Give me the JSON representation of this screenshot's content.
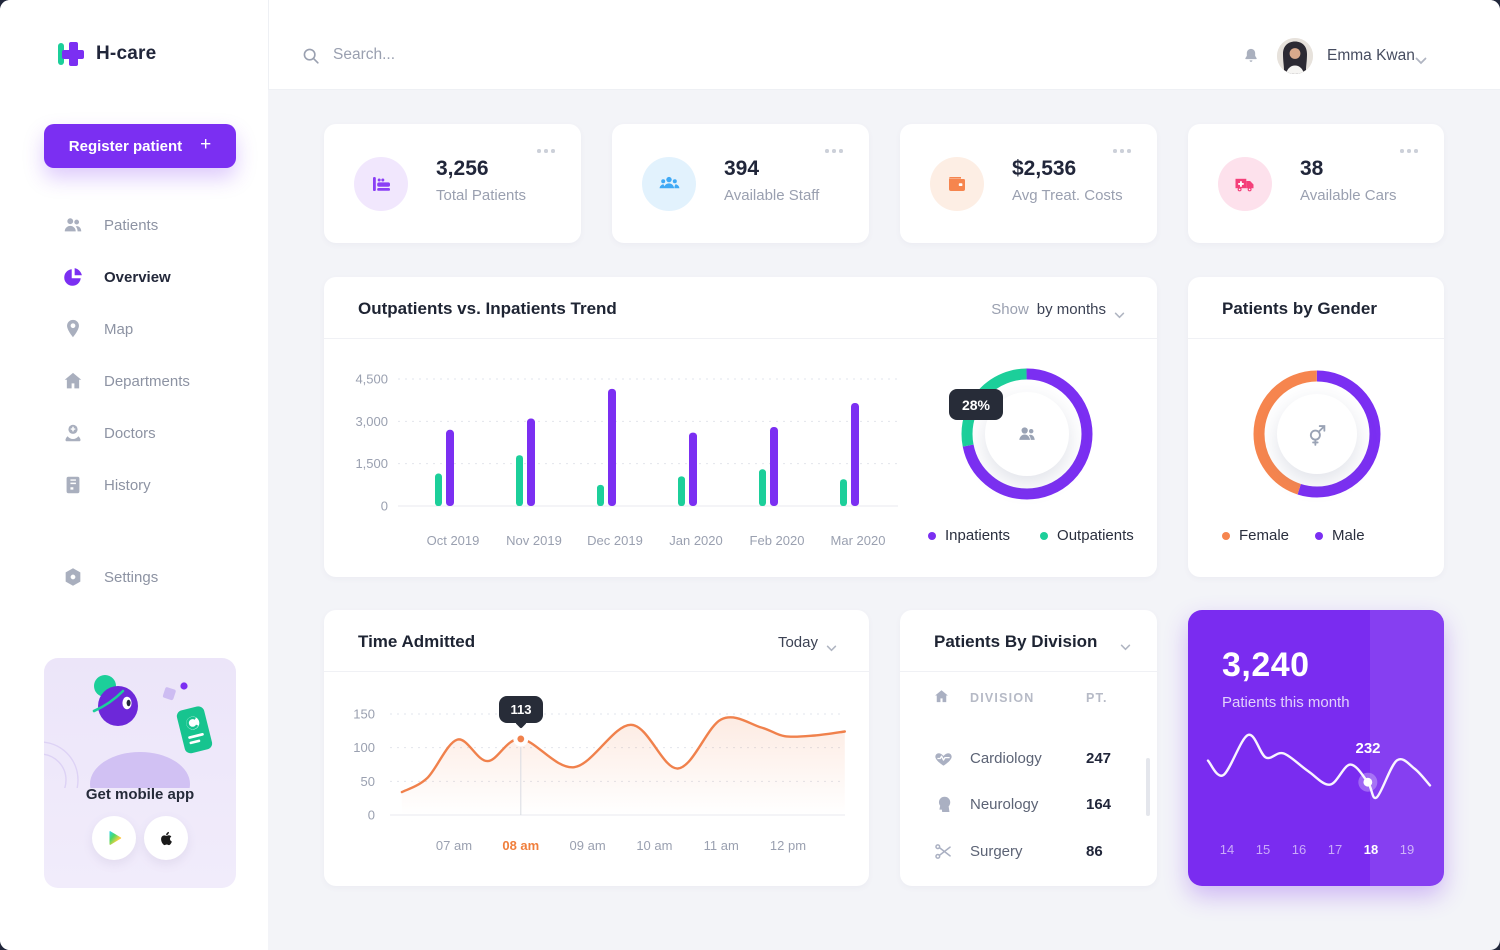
{
  "topbar": {
    "search_placeholder": "Search...",
    "user_name": "Emma Kwan"
  },
  "sidebar": {
    "brand": "H-care",
    "register_button": {
      "label": "Register patient",
      "plus": "+"
    },
    "items": [
      {
        "label": "Patients",
        "icon": "patients-icon",
        "active": false
      },
      {
        "label": "Overview",
        "icon": "overview-pie-icon",
        "active": true
      },
      {
        "label": "Map",
        "icon": "map-pin-icon",
        "active": false
      },
      {
        "label": "Departments",
        "icon": "home-icon",
        "active": false
      },
      {
        "label": "Doctors",
        "icon": "doctor-icon",
        "active": false
      },
      {
        "label": "History",
        "icon": "history-icon",
        "active": false
      },
      {
        "label": "Settings",
        "icon": "settings-icon",
        "active": false
      }
    ],
    "mobile_card": {
      "title": "Get mobile app",
      "stores": [
        "google-play",
        "app-store"
      ]
    }
  },
  "stats": [
    {
      "value": "3,256",
      "label": "Total Patients",
      "icon": "bed-icon",
      "icon_color": "#8a3ff5",
      "icon_bg": "#f1e7fd"
    },
    {
      "value": "394",
      "label": "Available Staff",
      "icon": "staff-icon",
      "icon_color": "#3fa9f5",
      "icon_bg": "#e2f2fd"
    },
    {
      "value": "$2,536",
      "label": "Avg Treat. Costs",
      "icon": "wallet-icon",
      "icon_color": "#f6854e",
      "icon_bg": "#fdeee4"
    },
    {
      "value": "38",
      "label": "Available Cars",
      "icon": "ambulance-icon",
      "icon_color": "#f4407a",
      "icon_bg": "#fde1ec"
    }
  ],
  "trend": {
    "title": "Outpatients vs. Inpatients Trend",
    "dropdown_prefix": "Show",
    "dropdown_value": "by months"
  },
  "gender": {
    "title": "Patients by Gender"
  },
  "time": {
    "title": "Time Admitted",
    "dropdown_value": "Today",
    "tooltip": "113"
  },
  "division": {
    "title": "Patients By Division",
    "columns": [
      "DIVISION",
      "PT."
    ],
    "rows": [
      {
        "icon": "cardiology-heart-icon",
        "name": "Cardiology",
        "value": "247"
      },
      {
        "icon": "neurology-head-icon",
        "name": "Neurology",
        "value": "164"
      },
      {
        "icon": "surgery-scissors-icon",
        "name": "Surgery",
        "value": "86"
      }
    ]
  },
  "month_card": {
    "value": "3,240",
    "label": "Patients this month",
    "point_label": "232",
    "days": [
      "14",
      "15",
      "16",
      "17",
      "18",
      "19"
    ],
    "active_day": "18"
  },
  "chart_data": [
    {
      "id": "trend-bars",
      "type": "bar",
      "title": "Outpatients vs. Inpatients Trend",
      "categories": [
        "Oct 2019",
        "Nov 2019",
        "Dec 2019",
        "Jan 2020",
        "Feb 2020",
        "Mar 2020"
      ],
      "series": [
        {
          "name": "Outpatients",
          "color": "#1ccf9a",
          "values": [
            1150,
            1800,
            750,
            1050,
            1300,
            950
          ]
        },
        {
          "name": "Inpatients",
          "color": "#7b2ff2",
          "values": [
            2700,
            3100,
            4150,
            2600,
            2800,
            3650
          ]
        }
      ],
      "ylim": [
        0,
        4500
      ],
      "yticks": [
        0,
        1500,
        3000,
        4500
      ],
      "ytick_labels": [
        "0",
        "1,500",
        "3,000",
        "4,500"
      ],
      "grid": "horizontal-dashed",
      "legend_position": "bottom-right"
    },
    {
      "id": "trend-donut",
      "type": "pie",
      "badge": "28%",
      "center_icon": "patients-icon",
      "slices": [
        {
          "name": "Inpatients",
          "color": "#7b2ff2",
          "pct": 72
        },
        {
          "name": "Outpatients",
          "color": "#1ccf9a",
          "pct": 28
        }
      ]
    },
    {
      "id": "gender-donut",
      "type": "pie",
      "title": "Patients by Gender",
      "center_icon": "gender-icon",
      "slices": [
        {
          "name": "Male",
          "color": "#7b2ff2",
          "pct": 55
        },
        {
          "name": "Female",
          "color": "#f6854e",
          "pct": 45
        }
      ],
      "legend_order": [
        "Female",
        "Male"
      ]
    },
    {
      "id": "time-line",
      "type": "line",
      "title": "Time Admitted",
      "color": "#f0814c",
      "x_labels": [
        "07 am",
        "08 am",
        "09 am",
        "10 am",
        "11 am",
        "12 pm"
      ],
      "active_x_label": "08 am",
      "yticks": [
        0,
        50,
        100,
        150
      ],
      "ylim": [
        0,
        160
      ],
      "tooltip": {
        "value": 113,
        "x": "08 am"
      },
      "points": [
        {
          "h": 6.22,
          "v": 34
        },
        {
          "h": 6.6,
          "v": 55
        },
        {
          "h": 7.05,
          "v": 112
        },
        {
          "h": 7.5,
          "v": 80
        },
        {
          "h": 8.0,
          "v": 113
        },
        {
          "h": 8.8,
          "v": 71
        },
        {
          "h": 9.65,
          "v": 134
        },
        {
          "h": 10.35,
          "v": 69
        },
        {
          "h": 11.0,
          "v": 142
        },
        {
          "h": 11.6,
          "v": 130
        },
        {
          "h": 11.95,
          "v": 117
        },
        {
          "h": 12.4,
          "v": 118
        },
        {
          "h": 12.85,
          "v": 124
        }
      ],
      "grid": "horizontal-dashed"
    },
    {
      "id": "month-spark",
      "type": "line",
      "color": "#ffffff",
      "x_labels": [
        "14",
        "15",
        "16",
        "17",
        "18",
        "19"
      ],
      "highlight": {
        "x_label": "18",
        "value": 232
      },
      "points_norm": [
        [
          0.0,
          0.42
        ],
        [
          0.07,
          0.6
        ],
        [
          0.18,
          0.1
        ],
        [
          0.26,
          0.38
        ],
        [
          0.34,
          0.33
        ],
        [
          0.45,
          0.55
        ],
        [
          0.55,
          0.72
        ],
        [
          0.64,
          0.47
        ],
        [
          0.72,
          0.69
        ],
        [
          0.76,
          0.88
        ],
        [
          0.85,
          0.42
        ],
        [
          0.93,
          0.52
        ],
        [
          1.0,
          0.73
        ]
      ]
    }
  ]
}
